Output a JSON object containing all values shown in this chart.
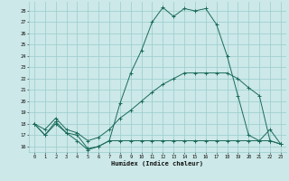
{
  "xlabel": "Humidex (Indice chaleur)",
  "bg_color": "#cce8e8",
  "grid_color": "#99cccc",
  "line_color": "#1a6b5a",
  "line1_y": [
    18.0,
    17.0,
    18.2,
    17.2,
    17.0,
    15.8,
    16.0,
    16.5,
    16.5,
    16.5,
    16.5,
    16.5,
    16.5,
    16.5,
    16.5,
    16.5,
    16.5,
    16.5,
    16.5,
    16.5,
    16.5,
    16.5,
    16.5,
    16.2
  ],
  "line2_y": [
    18.0,
    17.5,
    18.5,
    17.5,
    17.2,
    16.5,
    16.8,
    17.5,
    18.5,
    19.2,
    20.0,
    20.8,
    21.5,
    22.0,
    22.5,
    22.5,
    22.5,
    22.5,
    22.5,
    22.0,
    21.2,
    20.5,
    16.5,
    16.2
  ],
  "line3_y": [
    18.0,
    17.0,
    18.0,
    17.2,
    16.5,
    15.7,
    16.0,
    16.5,
    19.8,
    22.5,
    24.5,
    27.0,
    28.3,
    27.5,
    28.2,
    28.0,
    28.2,
    26.8,
    24.0,
    20.5,
    17.0,
    16.5,
    17.5,
    16.2
  ],
  "x_ticks": [
    0,
    1,
    2,
    3,
    4,
    5,
    6,
    7,
    8,
    9,
    10,
    11,
    12,
    13,
    14,
    15,
    16,
    17,
    18,
    19,
    20,
    21,
    22,
    23
  ],
  "y_ticks": [
    16,
    17,
    18,
    19,
    20,
    21,
    22,
    23,
    24,
    25,
    26,
    27,
    28
  ],
  "xlim": [
    -0.5,
    23.5
  ],
  "ylim": [
    15.5,
    28.8
  ]
}
